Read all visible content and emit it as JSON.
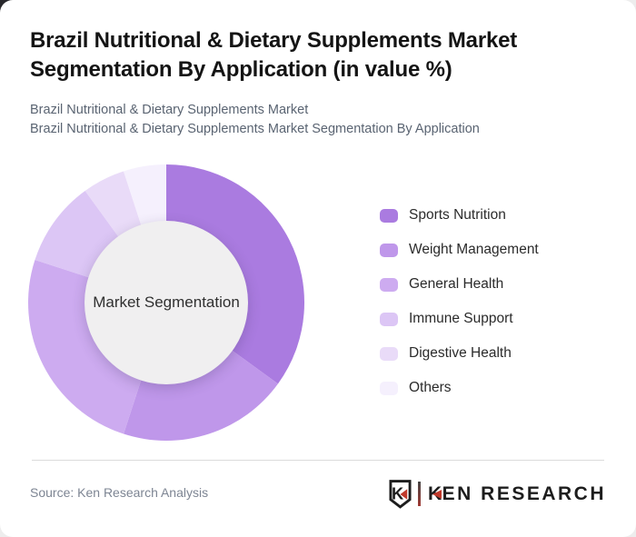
{
  "header": {
    "title": "Brazil Nutritional & Dietary Supplements Market Segmentation By Application (in value %)",
    "subtitle_line1": "Brazil Nutritional & Dietary Supplements Market",
    "subtitle_line2": "Brazil Nutritional & Dietary Supplements Market Segmentation By Application"
  },
  "chart_data": {
    "type": "pie",
    "variant": "donut",
    "title": "Brazil Nutritional & Dietary Supplements Market Segmentation By Application (in value %)",
    "center_label": "Market Segmentation",
    "categories": [
      "Sports Nutrition",
      "Weight Management",
      "General Health",
      "Immune Support",
      "Digestive Health",
      "Others"
    ],
    "values": [
      35,
      20,
      25,
      10,
      5,
      5
    ],
    "unit": "% of market value",
    "colors": [
      "#aa7be0",
      "#bf97ea",
      "#cdabf0",
      "#dcc6f5",
      "#e9dbf8",
      "#f5f0fd"
    ],
    "start_angle_deg": 0,
    "direction": "clockwise",
    "inner_radius_ratio": 0.59,
    "legend_position": "right",
    "data_labels": false
  },
  "theme": {
    "inner_circle": "#f0eff0",
    "divider": "#dcdcdc",
    "logo_red": "#c0392b",
    "logo_black": "#1d1d1d"
  },
  "footer": {
    "source": "Source: Ken Research Analysis",
    "badge_letter": "K",
    "logo_k": "K",
    "logo_rest": "EN RESEARCH"
  }
}
